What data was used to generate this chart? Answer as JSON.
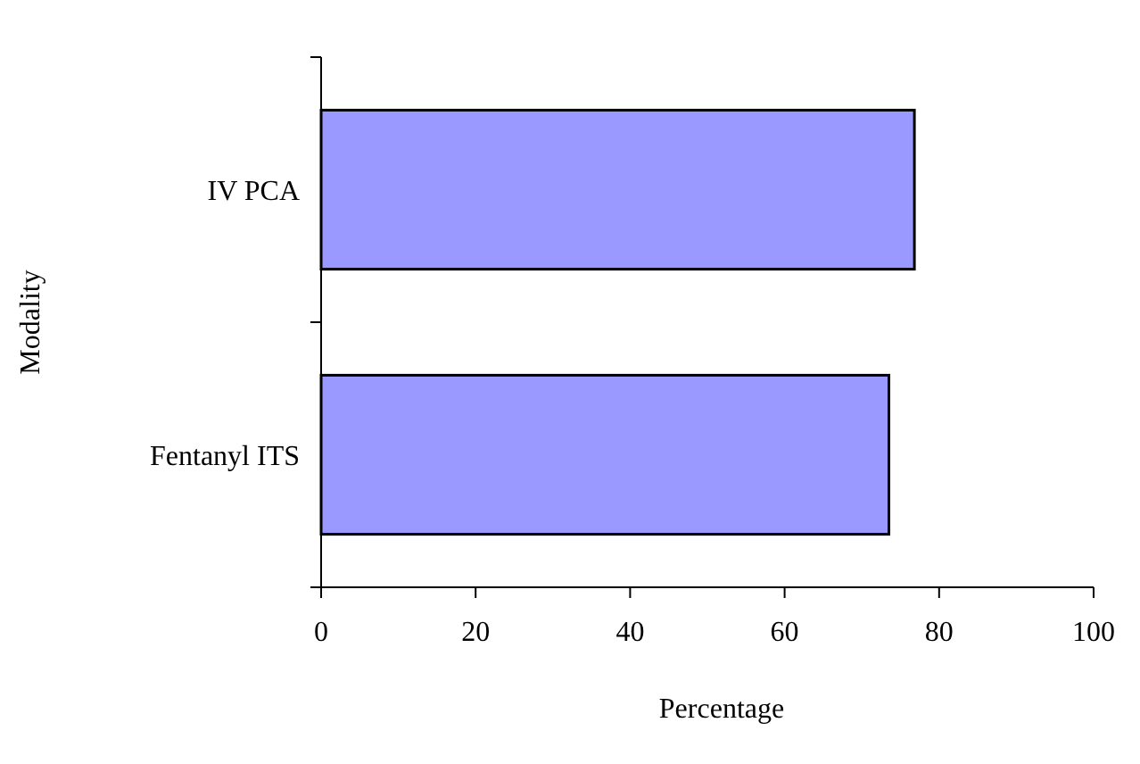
{
  "chart_data": {
    "type": "bar",
    "orientation": "horizontal",
    "categories": [
      "IV PCA",
      "Fentanyl ITS"
    ],
    "values": [
      76.8,
      73.5
    ],
    "color": "#9999ff",
    "xlim": [
      0,
      100
    ],
    "xticks": [
      0,
      20,
      40,
      60,
      80,
      100
    ],
    "xlabel": "Percentage",
    "ylabel": "Modality",
    "grid": false
  }
}
